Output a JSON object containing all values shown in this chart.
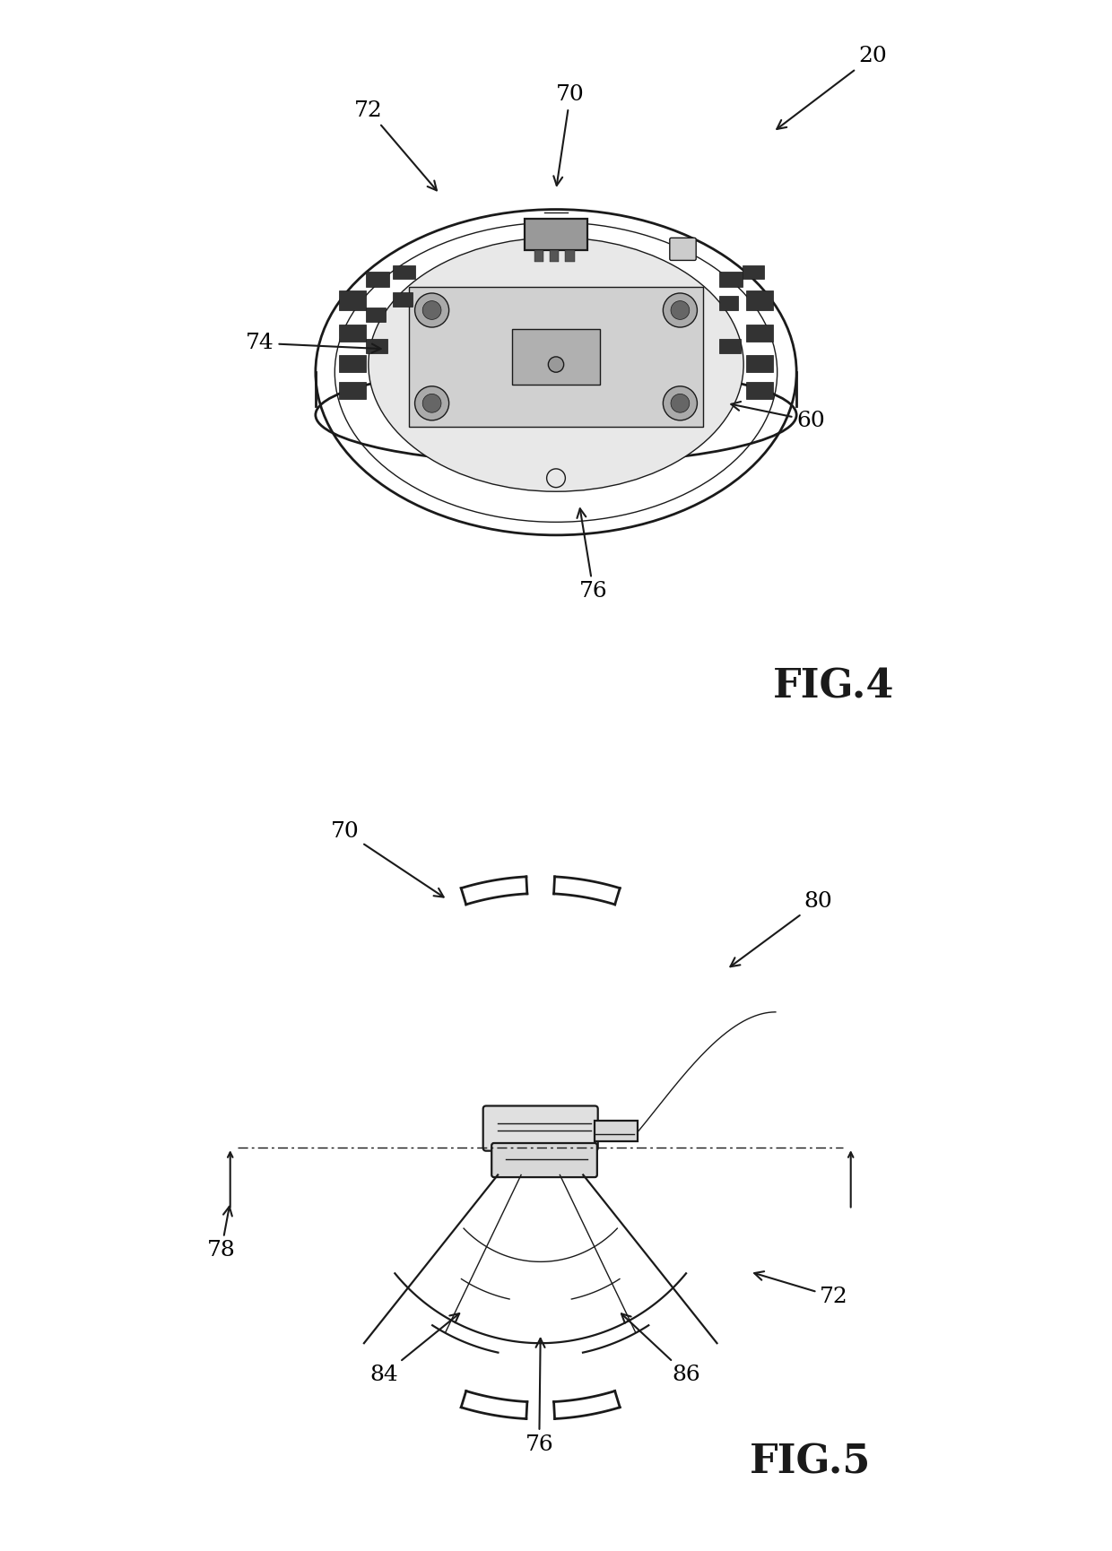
{
  "fig4_label": "FIG.4",
  "fig5_label": "FIG.5",
  "bg_color": "#ffffff",
  "line_color": "#1a1a1a",
  "gray_dark": "#333333",
  "gray_mid": "#777777",
  "gray_light": "#bbbbbb",
  "gray_lighter": "#dddddd"
}
